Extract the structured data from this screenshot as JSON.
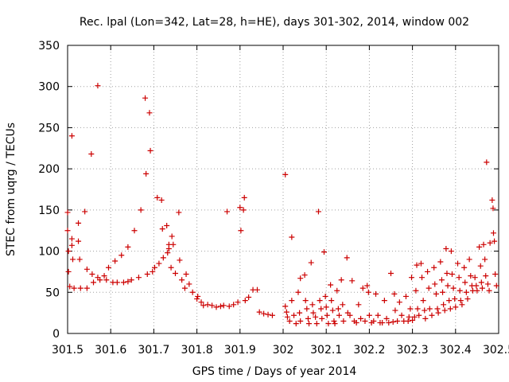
{
  "chart_data": {
    "type": "scatter",
    "title": "Rec. lpal (Lon=342, Lat=28, h=HE), days 301-302, 2014, window 002",
    "xlabel": "GPS time / Days of year 2014",
    "ylabel": "STEC from uqrg / TECUs",
    "xlim": [
      301.5,
      302.5
    ],
    "ylim": [
      0,
      350
    ],
    "xticks": [
      301.5,
      301.6,
      301.7,
      301.8,
      301.9,
      302,
      302.1,
      302.2,
      302.3,
      302.4,
      302.5
    ],
    "xtick_labels": [
      "301.5",
      "301.6",
      "301.7",
      "301.8",
      "301.9",
      "302",
      "302.1",
      "302.2",
      "302.3",
      "302.4",
      "302.5"
    ],
    "yticks": [
      0,
      50,
      100,
      150,
      200,
      250,
      300,
      350
    ],
    "ytick_labels": [
      "0",
      "50",
      "100",
      "150",
      "200",
      "250",
      "300",
      "350"
    ],
    "grid": true,
    "marker": "+",
    "color": "#cc0000",
    "points": [
      [
        301.5,
        147
      ],
      [
        301.5,
        125
      ],
      [
        301.502,
        100
      ],
      [
        301.502,
        75
      ],
      [
        301.505,
        57
      ],
      [
        301.51,
        240
      ],
      [
        301.51,
        115
      ],
      [
        301.51,
        107
      ],
      [
        301.512,
        90
      ],
      [
        301.515,
        55
      ],
      [
        301.525,
        134
      ],
      [
        301.525,
        112
      ],
      [
        301.528,
        90
      ],
      [
        301.53,
        55
      ],
      [
        301.54,
        148
      ],
      [
        301.545,
        78
      ],
      [
        301.545,
        55
      ],
      [
        301.555,
        218
      ],
      [
        301.557,
        72
      ],
      [
        301.56,
        62
      ],
      [
        301.57,
        301
      ],
      [
        301.57,
        68
      ],
      [
        301.575,
        65
      ],
      [
        301.585,
        70
      ],
      [
        301.59,
        65
      ],
      [
        301.595,
        80
      ],
      [
        301.605,
        62
      ],
      [
        301.61,
        88
      ],
      [
        301.615,
        62
      ],
      [
        301.625,
        95
      ],
      [
        301.63,
        62
      ],
      [
        301.64,
        105
      ],
      [
        301.64,
        63
      ],
      [
        301.648,
        65
      ],
      [
        301.655,
        125
      ],
      [
        301.665,
        68
      ],
      [
        301.67,
        150
      ],
      [
        301.68,
        286
      ],
      [
        301.682,
        194
      ],
      [
        301.685,
        72
      ],
      [
        301.69,
        268
      ],
      [
        301.692,
        222
      ],
      [
        301.697,
        75
      ],
      [
        301.702,
        80
      ],
      [
        301.708,
        165
      ],
      [
        301.712,
        85
      ],
      [
        301.718,
        162
      ],
      [
        301.72,
        127
      ],
      [
        301.722,
        92
      ],
      [
        301.73,
        131
      ],
      [
        301.732,
        98
      ],
      [
        301.735,
        108
      ],
      [
        301.735,
        103
      ],
      [
        301.74,
        80
      ],
      [
        301.742,
        118
      ],
      [
        301.745,
        108
      ],
      [
        301.75,
        73
      ],
      [
        301.758,
        147
      ],
      [
        301.76,
        89
      ],
      [
        301.765,
        65
      ],
      [
        301.772,
        55
      ],
      [
        301.775,
        72
      ],
      [
        301.782,
        60
      ],
      [
        301.79,
        50
      ],
      [
        301.8,
        42
      ],
      [
        301.802,
        45
      ],
      [
        301.81,
        38
      ],
      [
        301.815,
        34
      ],
      [
        301.825,
        35
      ],
      [
        301.835,
        34
      ],
      [
        301.845,
        32
      ],
      [
        301.855,
        33
      ],
      [
        301.862,
        34
      ],
      [
        301.87,
        148
      ],
      [
        301.875,
        33
      ],
      [
        301.885,
        35
      ],
      [
        301.895,
        38
      ],
      [
        301.9,
        153
      ],
      [
        301.902,
        125
      ],
      [
        301.908,
        150
      ],
      [
        301.91,
        165
      ],
      [
        301.912,
        40
      ],
      [
        301.92,
        44
      ],
      [
        301.93,
        53
      ],
      [
        301.94,
        53
      ],
      [
        301.945,
        26
      ],
      [
        301.955,
        24
      ],
      [
        301.965,
        23
      ],
      [
        301.975,
        22
      ],
      [
        302.005,
        193
      ],
      [
        302.005,
        33
      ],
      [
        302.008,
        26
      ],
      [
        302.01,
        20
      ],
      [
        302.015,
        15
      ],
      [
        302.02,
        117
      ],
      [
        302.02,
        40
      ],
      [
        302.025,
        22
      ],
      [
        302.03,
        12
      ],
      [
        302.035,
        50
      ],
      [
        302.038,
        25
      ],
      [
        302.04,
        15
      ],
      [
        302.04,
        67
      ],
      [
        302.05,
        71
      ],
      [
        302.052,
        40
      ],
      [
        302.055,
        30
      ],
      [
        302.058,
        18
      ],
      [
        302.06,
        12
      ],
      [
        302.065,
        86
      ],
      [
        302.068,
        35
      ],
      [
        302.07,
        25
      ],
      [
        302.075,
        20
      ],
      [
        302.078,
        12
      ],
      [
        302.082,
        148
      ],
      [
        302.085,
        40
      ],
      [
        302.088,
        30
      ],
      [
        302.09,
        18
      ],
      [
        302.095,
        99
      ],
      [
        302.098,
        45
      ],
      [
        302.1,
        32
      ],
      [
        302.102,
        22
      ],
      [
        302.105,
        12
      ],
      [
        302.11,
        59
      ],
      [
        302.112,
        40
      ],
      [
        302.115,
        28
      ],
      [
        302.118,
        15
      ],
      [
        302.12,
        12
      ],
      [
        302.125,
        52
      ],
      [
        302.128,
        30
      ],
      [
        302.13,
        22
      ],
      [
        302.135,
        65
      ],
      [
        302.138,
        35
      ],
      [
        302.14,
        15
      ],
      [
        302.148,
        92
      ],
      [
        302.15,
        25
      ],
      [
        302.155,
        22
      ],
      [
        302.16,
        64
      ],
      [
        302.165,
        15
      ],
      [
        302.17,
        13
      ],
      [
        302.175,
        35
      ],
      [
        302.18,
        18
      ],
      [
        302.185,
        55
      ],
      [
        302.19,
        15
      ],
      [
        302.195,
        58
      ],
      [
        302.198,
        50
      ],
      [
        302.2,
        22
      ],
      [
        302.205,
        13
      ],
      [
        302.21,
        15
      ],
      [
        302.215,
        48
      ],
      [
        302.22,
        22
      ],
      [
        302.225,
        13
      ],
      [
        302.23,
        13
      ],
      [
        302.235,
        40
      ],
      [
        302.24,
        18
      ],
      [
        302.245,
        13
      ],
      [
        302.25,
        73
      ],
      [
        302.255,
        14
      ],
      [
        302.258,
        48
      ],
      [
        302.26,
        28
      ],
      [
        302.265,
        15
      ],
      [
        302.27,
        38
      ],
      [
        302.275,
        22
      ],
      [
        302.28,
        15
      ],
      [
        302.285,
        45
      ],
      [
        302.29,
        15
      ],
      [
        302.292,
        20
      ],
      [
        302.295,
        30
      ],
      [
        302.298,
        68
      ],
      [
        302.3,
        16
      ],
      [
        302.305,
        20
      ],
      [
        302.308,
        52
      ],
      [
        302.31,
        83
      ],
      [
        302.312,
        30
      ],
      [
        302.315,
        22
      ],
      [
        302.32,
        85
      ],
      [
        302.322,
        68
      ],
      [
        302.325,
        40
      ],
      [
        302.328,
        28
      ],
      [
        302.33,
        18
      ],
      [
        302.335,
        75
      ],
      [
        302.338,
        55
      ],
      [
        302.34,
        30
      ],
      [
        302.345,
        22
      ],
      [
        302.35,
        80
      ],
      [
        302.352,
        60
      ],
      [
        302.355,
        48
      ],
      [
        302.358,
        30
      ],
      [
        302.36,
        25
      ],
      [
        302.365,
        87
      ],
      [
        302.368,
        65
      ],
      [
        302.37,
        50
      ],
      [
        302.372,
        35
      ],
      [
        302.375,
        28
      ],
      [
        302.378,
        103
      ],
      [
        302.38,
        73
      ],
      [
        302.382,
        58
      ],
      [
        302.385,
        40
      ],
      [
        302.388,
        30
      ],
      [
        302.39,
        100
      ],
      [
        302.392,
        72
      ],
      [
        302.395,
        55
      ],
      [
        302.398,
        42
      ],
      [
        302.4,
        32
      ],
      [
        302.405,
        85
      ],
      [
        302.408,
        68
      ],
      [
        302.41,
        52
      ],
      [
        302.412,
        40
      ],
      [
        302.415,
        35
      ],
      [
        302.42,
        80
      ],
      [
        302.422,
        62
      ],
      [
        302.425,
        50
      ],
      [
        302.428,
        42
      ],
      [
        302.432,
        90
      ],
      [
        302.435,
        70
      ],
      [
        302.438,
        58
      ],
      [
        302.44,
        52
      ],
      [
        302.445,
        68
      ],
      [
        302.448,
        58
      ],
      [
        302.45,
        52
      ],
      [
        302.455,
        105
      ],
      [
        302.458,
        82
      ],
      [
        302.46,
        62
      ],
      [
        302.462,
        55
      ],
      [
        302.465,
        108
      ],
      [
        302.468,
        90
      ],
      [
        302.47,
        70
      ],
      [
        302.472,
        208
      ],
      [
        302.475,
        60
      ],
      [
        302.478,
        52
      ],
      [
        302.48,
        110
      ],
      [
        302.485,
        162
      ],
      [
        302.487,
        152
      ],
      [
        302.488,
        122
      ],
      [
        302.49,
        112
      ],
      [
        302.492,
        72
      ],
      [
        302.495,
        58
      ]
    ]
  }
}
